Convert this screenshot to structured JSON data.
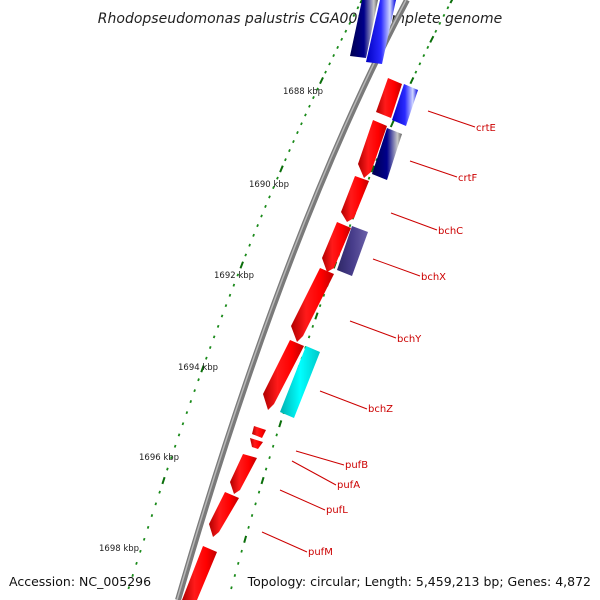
{
  "title": "Rhodopseudomonas palustris CGA009, complete genome",
  "accession": "Accession: NC_005296",
  "topology": "Topology: circular; Length: 5,459,213 bp; Genes: 4,872",
  "colors": {
    "background": "#ffffff",
    "backbone": "#808080",
    "forward_gene": "#ff0000",
    "tick_major": "#006400",
    "tick_minor": "#1a8a1a",
    "label_line": "#cc0000",
    "label_text": "#cc0000"
  },
  "scale_labels": [
    "1688 kbp",
    "1690 kbp",
    "1692 kbp",
    "1694 kbp",
    "1696 kbp",
    "1698 kbp"
  ],
  "gene_labels": [
    "crtE",
    "crtF",
    "bchC",
    "bchX",
    "bchY",
    "bchZ",
    "pufB",
    "pufA",
    "pufL",
    "pufM"
  ],
  "gene_colors": {
    "crtE": "#0000ff",
    "crtF": "#00008b",
    "bchC": "#ff0000",
    "bchX": "#483d8b",
    "bchY": "#ff0000",
    "bchZ": "#00ffff",
    "pufB": "#ff0000",
    "pufA": "#ff0000",
    "pufL": "#ff0000",
    "pufM": "#ff0000"
  }
}
